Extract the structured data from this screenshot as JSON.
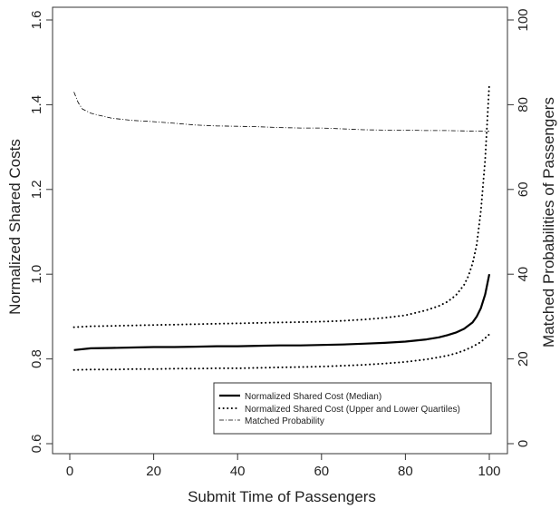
{
  "chart_data": {
    "type": "line",
    "xlabel": "Submit Time of Passengers",
    "ylabel": "Normalized Shared Costs",
    "y2label": "Matched Probabilities of Passengers",
    "xlim": [
      0,
      100
    ],
    "ylim": [
      0.6,
      1.6
    ],
    "y2lim": [
      0,
      100
    ],
    "x_ticks": [
      0,
      20,
      40,
      60,
      80,
      100
    ],
    "y_ticks": [
      0.6,
      0.8,
      1.0,
      1.2,
      1.4,
      1.6
    ],
    "y2_ticks": [
      0,
      20,
      40,
      60,
      80,
      100
    ],
    "grid": false,
    "legend_position": "bottom-right",
    "series": [
      {
        "name": "Normalized Shared Cost (Median)",
        "axis": "left",
        "style": "solid",
        "x": [
          1,
          5,
          10,
          15,
          20,
          25,
          30,
          35,
          40,
          45,
          50,
          55,
          60,
          65,
          70,
          75,
          80,
          85,
          88,
          90,
          92,
          94,
          96,
          97,
          98,
          99,
          100
        ],
        "y": [
          0.821,
          0.825,
          0.826,
          0.827,
          0.828,
          0.828,
          0.829,
          0.83,
          0.83,
          0.831,
          0.832,
          0.832,
          0.833,
          0.834,
          0.836,
          0.838,
          0.841,
          0.846,
          0.851,
          0.856,
          0.862,
          0.871,
          0.886,
          0.9,
          0.92,
          0.952,
          1.0
        ]
      },
      {
        "name": "Normalized Shared Cost (Upper and Lower Quartiles)",
        "axis": "left",
        "style": "dotted",
        "x": [
          1,
          5,
          10,
          15,
          20,
          25,
          30,
          35,
          40,
          45,
          50,
          55,
          60,
          65,
          70,
          75,
          80,
          85,
          88,
          90,
          92,
          94,
          95,
          96,
          97,
          98,
          99,
          100
        ],
        "y": [
          0.875,
          0.877,
          0.878,
          0.879,
          0.88,
          0.881,
          0.882,
          0.883,
          0.884,
          0.885,
          0.886,
          0.887,
          0.888,
          0.89,
          0.893,
          0.897,
          0.903,
          0.915,
          0.925,
          0.935,
          0.95,
          0.975,
          0.995,
          1.025,
          1.07,
          1.15,
          1.27,
          1.45
        ]
      },
      {
        "name": "Normalized Shared Cost (Upper and Lower Quartiles)",
        "axis": "left",
        "style": "dotted",
        "x": [
          1,
          5,
          10,
          15,
          20,
          25,
          30,
          35,
          40,
          45,
          50,
          55,
          60,
          65,
          70,
          75,
          80,
          85,
          88,
          90,
          92,
          94,
          96,
          98,
          100
        ],
        "y": [
          0.774,
          0.775,
          0.775,
          0.776,
          0.776,
          0.777,
          0.777,
          0.778,
          0.778,
          0.779,
          0.78,
          0.781,
          0.782,
          0.784,
          0.786,
          0.789,
          0.793,
          0.799,
          0.804,
          0.808,
          0.813,
          0.82,
          0.829,
          0.84,
          0.858
        ]
      },
      {
        "name": "Matched Probability",
        "axis": "right",
        "style": "dashdot",
        "x": [
          1,
          2,
          3,
          5,
          7,
          10,
          15,
          20,
          25,
          30,
          35,
          40,
          45,
          50,
          55,
          60,
          65,
          70,
          75,
          80,
          85,
          90,
          95,
          100
        ],
        "y": [
          83,
          80.5,
          79,
          78,
          77.5,
          76.8,
          76.3,
          76,
          75.6,
          75.2,
          75,
          74.9,
          74.8,
          74.6,
          74.5,
          74.5,
          74.3,
          74.1,
          74,
          74,
          73.9,
          73.9,
          73.8,
          73.7
        ]
      }
    ]
  }
}
